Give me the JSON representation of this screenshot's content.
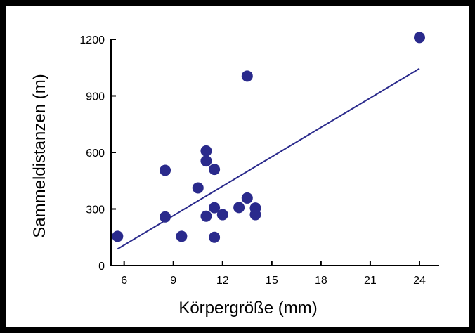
{
  "chart_data": {
    "type": "scatter",
    "title": "",
    "xlabel": "Körpergröße (mm)",
    "ylabel": "Sammeldistanzen (m)",
    "xlim": [
      5.2,
      25.2
    ],
    "ylim": [
      0,
      1200
    ],
    "x_ticks": [
      6,
      9,
      12,
      15,
      18,
      21,
      24
    ],
    "y_ticks": [
      0,
      300,
      600,
      900,
      1200
    ],
    "grid": false,
    "legend": "none",
    "marker_color": "#2a2a8c",
    "line_color": "#2a2a8c",
    "points": [
      {
        "x": 5.6,
        "y": 155
      },
      {
        "x": 8.5,
        "y": 505
      },
      {
        "x": 8.5,
        "y": 258
      },
      {
        "x": 9.5,
        "y": 155
      },
      {
        "x": 10.5,
        "y": 412
      },
      {
        "x": 11.0,
        "y": 608
      },
      {
        "x": 11.0,
        "y": 555
      },
      {
        "x": 11.0,
        "y": 262
      },
      {
        "x": 11.5,
        "y": 510
      },
      {
        "x": 11.5,
        "y": 307
      },
      {
        "x": 11.5,
        "y": 150
      },
      {
        "x": 12.0,
        "y": 270
      },
      {
        "x": 13.0,
        "y": 308
      },
      {
        "x": 13.5,
        "y": 1005
      },
      {
        "x": 13.5,
        "y": 358
      },
      {
        "x": 14.0,
        "y": 305
      },
      {
        "x": 14.0,
        "y": 270
      },
      {
        "x": 24.0,
        "y": 1210
      }
    ],
    "trendline": {
      "x": [
        5.6,
        24.0
      ],
      "y": [
        88,
        1045
      ]
    }
  }
}
